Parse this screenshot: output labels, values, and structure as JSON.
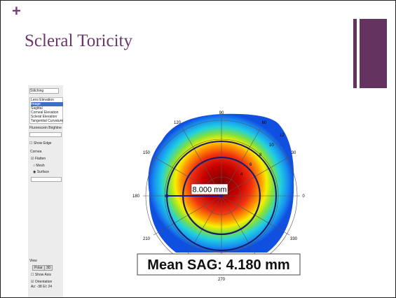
{
  "slide": {
    "plus": "+",
    "title": "Scleral Toricity"
  },
  "panel": {
    "dropdown": "Stitching",
    "list": [
      "Lens Elevation",
      "Image",
      "Sagittal",
      "Corneal Elevation",
      "Scleral Elevation",
      "Tangential Curvature"
    ],
    "brightness": "Fluorescein Brightne",
    "show_edge": "Show Edge",
    "cornea": "Cornea",
    "flatten": "Flatten",
    "mesh": "Mesh",
    "surface": "Surface",
    "view": "View",
    "polar": "Polar",
    "three_d": "3D",
    "show_axis": "Show Axis",
    "orientation": "Orientation",
    "az_el": "Az: -38 El: 24"
  },
  "plot": {
    "angles": [
      "90",
      "60",
      "30",
      "0",
      "330",
      "270",
      "210",
      "180",
      "150",
      "120"
    ],
    "rings": [
      "12",
      "10",
      "8",
      "6",
      "4"
    ],
    "measure": "8.000 mm",
    "mean_sag": "Mean SAG: 4.180 mm"
  }
}
